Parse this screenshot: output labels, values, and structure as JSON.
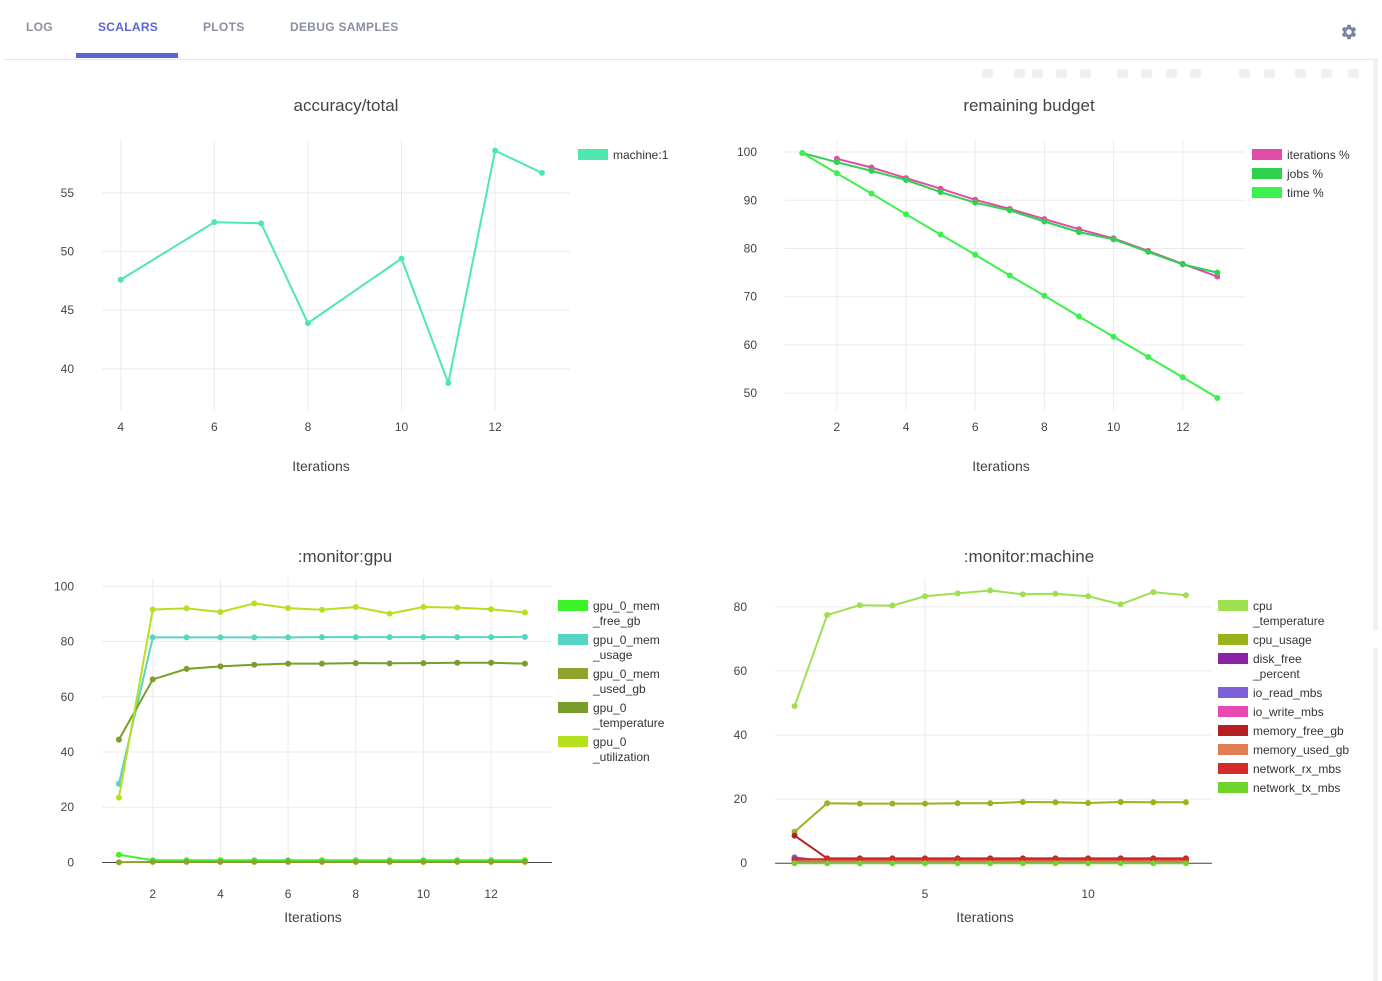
{
  "tabs": [
    {
      "label": "LOG",
      "active": false
    },
    {
      "label": "SCALARS",
      "active": true
    },
    {
      "label": "PLOTS",
      "active": false
    },
    {
      "label": "DEBUG SAMPLES",
      "active": false
    }
  ],
  "settings_icon": "gear-icon",
  "toolbar_icons": [
    "camera-icon",
    "zoom-icon",
    "pan-icon",
    "box-select-icon",
    "lasso-icon",
    "zoom-in-icon",
    "zoom-out-icon",
    "autoscale-icon",
    "reset-axes-icon",
    "spike-lines-icon",
    "hover-closest-icon",
    "hover-compare-icon",
    "log-scale-icon",
    "table-icon",
    "download-icon"
  ],
  "colors": {
    "accent": "#5a64d8"
  },
  "chart_data": [
    {
      "type": "line",
      "title": "accuracy/total",
      "xlabel": "Iterations",
      "ylabel": "",
      "xticks": [
        4,
        6,
        8,
        10,
        12
      ],
      "yticks": [
        40,
        45,
        50,
        55
      ],
      "xlim": [
        3.6,
        13.6
      ],
      "ylim": [
        36.5,
        59.5
      ],
      "grid": true,
      "legend": "top-right",
      "series": [
        {
          "name": "machine:1",
          "color": "#4de8b0",
          "x": [
            4,
            6,
            7,
            8,
            10,
            11,
            12,
            13
          ],
          "y": [
            47.6,
            52.5,
            52.4,
            43.9,
            49.4,
            38.8,
            58.6,
            56.7
          ]
        }
      ]
    },
    {
      "type": "line",
      "title": "remaining budget",
      "xlabel": "Iterations",
      "ylabel": "",
      "xticks": [
        2,
        4,
        6,
        8,
        10,
        12
      ],
      "yticks": [
        50,
        60,
        70,
        80,
        90,
        100
      ],
      "xlim": [
        0.5,
        13.8
      ],
      "ylim": [
        46.5,
        102.5
      ],
      "grid": true,
      "legend": "top-right",
      "series": [
        {
          "name": "iterations %",
          "color": "#de4da6",
          "x": [
            2,
            3,
            4,
            5,
            6,
            7,
            8,
            9,
            10,
            11,
            12,
            13
          ],
          "y": [
            98.6,
            96.8,
            94.6,
            92.4,
            90.1,
            88.2,
            86.1,
            84.0,
            82.1,
            79.5,
            76.8,
            74.2
          ]
        },
        {
          "name": "jobs %",
          "color": "#2fd14f",
          "x": [
            1,
            2,
            3,
            4,
            5,
            6,
            7,
            8,
            9,
            10,
            11,
            12,
            13
          ],
          "y": [
            99.8,
            97.9,
            96.1,
            94.2,
            91.7,
            89.5,
            87.9,
            85.6,
            83.4,
            81.9,
            79.3,
            76.7,
            75.0
          ]
        },
        {
          "name": "time %",
          "color": "#3cf050",
          "x": [
            1,
            2,
            3,
            4,
            5,
            6,
            7,
            8,
            9,
            10,
            11,
            12,
            13
          ],
          "y": [
            99.8,
            95.6,
            91.4,
            87.1,
            82.9,
            78.7,
            74.4,
            70.2,
            65.9,
            61.7,
            57.5,
            53.3,
            49.0
          ]
        }
      ]
    },
    {
      "type": "line",
      "title": ":monitor:gpu",
      "xlabel": "Iterations",
      "ylabel": "",
      "xticks": [
        2,
        4,
        6,
        8,
        10,
        12
      ],
      "yticks": [
        0,
        20,
        40,
        60,
        80,
        100
      ],
      "xlim": [
        0.5,
        13.8
      ],
      "ylim": [
        -2,
        103
      ],
      "grid": true,
      "legend": "top-right",
      "series": [
        {
          "name": "gpu_0_mem\n_free_gb",
          "color": "#3ef22a",
          "x": [
            1,
            2,
            3,
            4,
            5,
            6,
            7,
            8,
            9,
            10,
            11,
            12,
            13
          ],
          "y": [
            2.8,
            0.8,
            0.8,
            0.8,
            0.8,
            0.8,
            0.8,
            0.8,
            0.8,
            0.8,
            0.8,
            0.8,
            0.8
          ]
        },
        {
          "name": "gpu_0_mem\n_usage",
          "color": "#58d4c4",
          "x": [
            1,
            2,
            3,
            4,
            5,
            6,
            7,
            8,
            9,
            10,
            11,
            12,
            13
          ],
          "y": [
            28.5,
            81.5,
            81.5,
            81.5,
            81.5,
            81.5,
            81.6,
            81.6,
            81.6,
            81.6,
            81.6,
            81.6,
            81.7
          ]
        },
        {
          "name": "gpu_0_mem\n_used_gb",
          "color": "#8fa32c",
          "x": [
            1,
            2,
            3,
            4,
            5,
            6,
            7,
            8,
            9,
            10,
            11,
            12,
            13
          ],
          "y": [
            0.1,
            0.2,
            0.2,
            0.2,
            0.2,
            0.2,
            0.2,
            0.2,
            0.2,
            0.2,
            0.2,
            0.2,
            0.2
          ]
        },
        {
          "name": "gpu_0\n_temperature",
          "color": "#7a9e2a",
          "x": [
            1,
            2,
            3,
            4,
            5,
            6,
            7,
            8,
            9,
            10,
            11,
            12,
            13
          ],
          "y": [
            44.5,
            66.3,
            70.1,
            71.0,
            71.6,
            72.0,
            72.0,
            72.2,
            72.1,
            72.2,
            72.3,
            72.3,
            72.0
          ]
        },
        {
          "name": "gpu_0\n_utilization",
          "color": "#b6e01f",
          "x": [
            1,
            2,
            3,
            4,
            5,
            6,
            7,
            8,
            9,
            10,
            11,
            12,
            13
          ],
          "y": [
            23.5,
            91.6,
            92.0,
            90.7,
            93.8,
            92.1,
            91.5,
            92.5,
            90.1,
            92.5,
            92.3,
            91.7,
            90.5
          ]
        }
      ]
    },
    {
      "type": "line",
      "title": ":monitor:machine",
      "xlabel": "Iterations",
      "ylabel": "",
      "xticks": [
        5,
        10
      ],
      "yticks": [
        0,
        20,
        40,
        60,
        80
      ],
      "xlim": [
        0.4,
        13.8
      ],
      "ylim": [
        -1.5,
        89
      ],
      "grid": true,
      "legend": "top-right",
      "series": [
        {
          "name": "cpu\n_temperature",
          "color": "#9ee050",
          "x": [
            1,
            2,
            3,
            4,
            5,
            6,
            7,
            8,
            9,
            10,
            11,
            12,
            13
          ],
          "y": [
            49.0,
            77.5,
            80.5,
            80.4,
            83.3,
            84.2,
            85.1,
            83.9,
            84.1,
            83.3,
            80.8,
            84.6,
            83.6
          ]
        },
        {
          "name": "cpu_usage",
          "color": "#9ab31d",
          "x": [
            1,
            2,
            3,
            4,
            5,
            6,
            7,
            8,
            9,
            10,
            11,
            12,
            13
          ],
          "y": [
            9.8,
            18.7,
            18.6,
            18.6,
            18.6,
            18.7,
            18.7,
            19.1,
            19.0,
            18.8,
            19.1,
            19.0,
            19.0
          ]
        },
        {
          "name": "disk_free\n_percent",
          "color": "#8c23a6",
          "x": [
            1,
            2,
            3,
            4,
            5,
            6,
            7,
            8,
            9,
            10,
            11,
            12,
            13
          ],
          "y": [
            1.0,
            0.9,
            0.9,
            0.9,
            0.9,
            0.9,
            0.9,
            0.9,
            0.9,
            0.9,
            0.9,
            0.9,
            0.9
          ]
        },
        {
          "name": "io_read_mbs",
          "color": "#7d5fd8",
          "x": [
            1,
            2,
            3,
            4,
            5,
            6,
            7,
            8,
            9,
            10,
            11,
            12,
            13
          ],
          "y": [
            1.8,
            0.6,
            0.5,
            0.5,
            0.5,
            0.5,
            0.5,
            0.5,
            0.5,
            0.5,
            0.5,
            0.5,
            0.5
          ]
        },
        {
          "name": "io_write_mbs",
          "color": "#e74ab0",
          "x": [
            1,
            2,
            3,
            4,
            5,
            6,
            7,
            8,
            9,
            10,
            11,
            12,
            13
          ],
          "y": [
            0.4,
            0.4,
            0.4,
            0.4,
            0.4,
            0.4,
            0.4,
            0.4,
            0.4,
            0.4,
            0.4,
            0.4,
            0.4
          ]
        },
        {
          "name": "memory_free_gb",
          "color": "#b52020",
          "x": [
            1,
            2,
            3,
            4,
            5,
            6,
            7,
            8,
            9,
            10,
            11,
            12,
            13
          ],
          "y": [
            8.6,
            1.5,
            1.5,
            1.5,
            1.5,
            1.5,
            1.5,
            1.5,
            1.5,
            1.5,
            1.5,
            1.5,
            1.5
          ]
        },
        {
          "name": "memory_used_gb",
          "color": "#e07d52",
          "x": [
            1,
            2,
            3,
            4,
            5,
            6,
            7,
            8,
            9,
            10,
            11,
            12,
            13
          ],
          "y": [
            0.8,
            0.8,
            0.8,
            0.8,
            0.8,
            0.8,
            0.8,
            0.8,
            0.8,
            0.8,
            0.8,
            0.8,
            0.8
          ]
        },
        {
          "name": "network_rx_mbs",
          "color": "#d42a2a",
          "x": [
            1,
            2,
            3,
            4,
            5,
            6,
            7,
            8,
            9,
            10,
            11,
            12,
            13
          ],
          "y": [
            1.2,
            1.2,
            1.2,
            1.2,
            1.2,
            1.2,
            1.2,
            1.2,
            1.2,
            1.2,
            1.2,
            1.2,
            1.2
          ]
        },
        {
          "name": "network_tx_mbs",
          "color": "#6fd42c",
          "x": [
            1,
            2,
            3,
            4,
            5,
            6,
            7,
            8,
            9,
            10,
            11,
            12,
            13
          ],
          "y": [
            0.0,
            0.0,
            0.0,
            0.0,
            0.0,
            0.0,
            0.0,
            0.0,
            0.0,
            0.0,
            0.0,
            0.0,
            0.0
          ]
        }
      ]
    }
  ]
}
